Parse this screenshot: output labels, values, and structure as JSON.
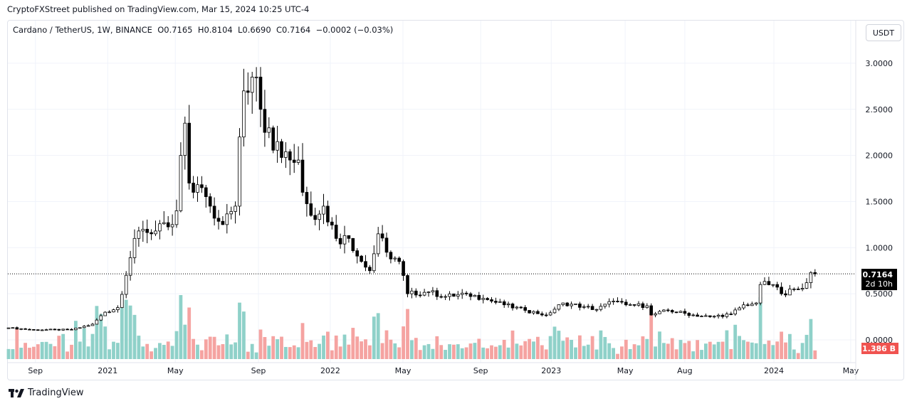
{
  "header": {
    "published": "CryptoFXStreet published on TradingView.com, Mar 15, 2024 10:25 UTC-4"
  },
  "legend": {
    "symbol": "Cardano / TetherUS, 1W, BINANCE",
    "open": "O0.7165",
    "high": "H0.8104",
    "low": "L0.6690",
    "close": "C0.7164",
    "change": "−0.0002 (−0.03%)"
  },
  "currency_button": "USDT",
  "footer": {
    "brand": "TradingView"
  },
  "colors": {
    "up_volume": "#8fd1c9",
    "down_volume": "#f5a3a1",
    "price_label": "#000000",
    "volume_label": "#f05350"
  },
  "chart_data": {
    "type": "candlestick",
    "title": "Cardano / TetherUS, 1W, BINANCE",
    "interval": "1W",
    "ylim": [
      -0.25,
      3.2
    ],
    "y_ticks": [
      "0.0000",
      "0.5000",
      "1.0000",
      "1.5000",
      "2.0000",
      "2.5000",
      "3.0000"
    ],
    "y_tick_values": [
      0,
      0.5,
      1,
      1.5,
      2,
      2.5,
      3
    ],
    "x_ticks": [
      {
        "label": "Sep",
        "week": 6.4
      },
      {
        "label": "2021",
        "week": 23.6
      },
      {
        "label": "May",
        "week": 39.7
      },
      {
        "label": "Sep",
        "week": 59.5
      },
      {
        "label": "2022",
        "week": 76.6
      },
      {
        "label": "May",
        "week": 93.9
      },
      {
        "label": "Sep",
        "week": 112.4
      },
      {
        "label": "2023",
        "week": 129.2
      },
      {
        "label": "May",
        "week": 146.8
      },
      {
        "label": "Aug",
        "week": 161
      },
      {
        "label": "2024",
        "week": 182.2
      },
      {
        "label": "May",
        "week": 200.5
      }
    ],
    "weeks": 193,
    "close_path_week_price": [
      [
        0,
        0.13
      ],
      [
        6,
        0.11
      ],
      [
        15,
        0.11
      ],
      [
        20,
        0.17
      ],
      [
        23,
        0.3
      ],
      [
        26,
        0.35
      ],
      [
        28,
        0.7
      ],
      [
        30,
        1.1
      ],
      [
        32,
        1.2
      ],
      [
        34,
        1.15
      ],
      [
        39,
        1.25
      ],
      [
        40,
        1.4
      ],
      [
        41,
        2.0
      ],
      [
        42,
        2.35
      ],
      [
        43,
        1.7
      ],
      [
        44,
        1.6
      ],
      [
        46,
        1.65
      ],
      [
        48,
        1.45
      ],
      [
        51,
        1.25
      ],
      [
        54,
        1.45
      ],
      [
        55,
        2.2
      ],
      [
        56,
        2.7
      ],
      [
        58,
        2.85
      ],
      [
        59,
        2.85
      ],
      [
        60,
        2.5
      ],
      [
        61,
        2.25
      ],
      [
        64,
        2.15
      ],
      [
        67,
        1.95
      ],
      [
        69,
        1.95
      ],
      [
        70,
        1.6
      ],
      [
        72,
        1.35
      ],
      [
        75,
        1.45
      ],
      [
        78,
        1.1
      ],
      [
        81,
        1.1
      ],
      [
        84,
        0.85
      ],
      [
        86,
        0.75
      ],
      [
        88,
        1.15
      ],
      [
        90,
        0.95
      ],
      [
        93,
        0.85
      ],
      [
        95,
        0.5
      ],
      [
        100,
        0.52
      ],
      [
        104,
        0.47
      ],
      [
        109,
        0.5
      ],
      [
        113,
        0.45
      ],
      [
        118,
        0.38
      ],
      [
        123,
        0.32
      ],
      [
        128,
        0.27
      ],
      [
        132,
        0.4
      ],
      [
        137,
        0.36
      ],
      [
        140,
        0.33
      ],
      [
        144,
        0.42
      ],
      [
        147,
        0.38
      ],
      [
        152,
        0.37
      ],
      [
        153,
        0.27
      ],
      [
        157,
        0.32
      ],
      [
        163,
        0.27
      ],
      [
        167,
        0.25
      ],
      [
        172,
        0.28
      ],
      [
        175,
        0.38
      ],
      [
        178,
        0.4
      ],
      [
        179,
        0.6
      ],
      [
        182,
        0.6
      ],
      [
        184,
        0.5
      ],
      [
        188,
        0.55
      ],
      [
        190,
        0.62
      ],
      [
        191,
        0.73
      ],
      [
        192,
        0.7164
      ]
    ],
    "last_price": "0.7164",
    "countdown": "2d 10h",
    "last_volume": "1.386 B"
  }
}
